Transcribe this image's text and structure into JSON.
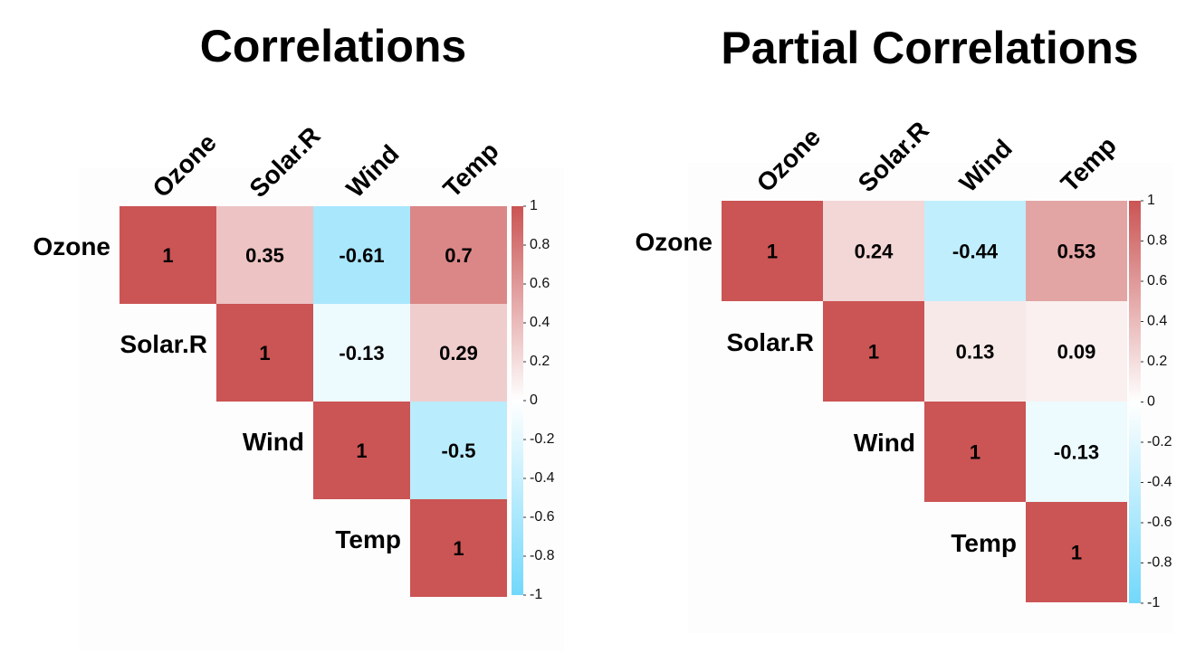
{
  "chart_data": [
    {
      "type": "heatmap",
      "title": "Correlations",
      "variables": [
        "Ozone",
        "Solar.R",
        "Wind",
        "Temp"
      ],
      "matrix": [
        [
          1,
          0.35,
          -0.61,
          0.7
        ],
        [
          null,
          1,
          -0.13,
          0.29
        ],
        [
          null,
          null,
          1,
          -0.5
        ],
        [
          null,
          null,
          null,
          1
        ]
      ],
      "cell_labels": [
        [
          "1",
          "0.35",
          "-0.61",
          "0.7"
        ],
        [
          "",
          "1",
          "-0.13",
          "0.29"
        ],
        [
          "",
          "",
          "1",
          "-0.5"
        ],
        [
          "",
          "",
          "",
          "1"
        ]
      ],
      "triangle": "upper",
      "colorbar": {
        "range": [
          -1,
          1
        ],
        "ticks": [
          1,
          0.8,
          0.6,
          0.4,
          0.2,
          0,
          -0.2,
          -0.4,
          -0.6,
          -0.8,
          -1
        ],
        "tick_labels": [
          "1",
          "0.8",
          "0.6",
          "0.4",
          "0.2",
          "0",
          "-0.2",
          "-0.4",
          "-0.6",
          "-0.8",
          "-1"
        ],
        "colors": {
          "negative": "#72d8fb",
          "zero": "#ffffff",
          "positive": "#cb5454"
        }
      },
      "legend": "right",
      "grid": false
    },
    {
      "type": "heatmap",
      "title": "Partial Correlations",
      "variables": [
        "Ozone",
        "Solar.R",
        "Wind",
        "Temp"
      ],
      "matrix": [
        [
          1,
          0.24,
          -0.44,
          0.53
        ],
        [
          null,
          1,
          0.13,
          0.09
        ],
        [
          null,
          null,
          1,
          -0.13
        ],
        [
          null,
          null,
          null,
          1
        ]
      ],
      "cell_labels": [
        [
          "1",
          "0.24",
          "-0.44",
          "0.53"
        ],
        [
          "",
          "1",
          "0.13",
          "0.09"
        ],
        [
          "",
          "",
          "1",
          "-0.13"
        ],
        [
          "",
          "",
          "",
          "1"
        ]
      ],
      "triangle": "upper",
      "colorbar": {
        "range": [
          -1,
          1
        ],
        "ticks": [
          1,
          0.8,
          0.6,
          0.4,
          0.2,
          0,
          -0.2,
          -0.4,
          -0.6,
          -0.8,
          -1
        ],
        "tick_labels": [
          "1",
          "0.8",
          "0.6",
          "0.4",
          "0.2",
          "0",
          "-0.2",
          "-0.4",
          "-0.6",
          "-0.8",
          "-1"
        ],
        "colors": {
          "negative": "#72d8fb",
          "zero": "#ffffff",
          "positive": "#cb5454"
        }
      },
      "legend": "right",
      "grid": false
    }
  ]
}
